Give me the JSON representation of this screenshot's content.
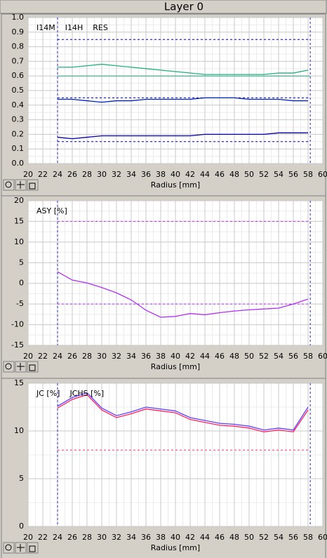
{
  "window_title": "Layer 0",
  "chart_data": [
    {
      "type": "line",
      "xlabel": "Radius [mm]",
      "grid": true,
      "xlim": [
        20,
        60
      ],
      "xticks": [
        20,
        22,
        24,
        26,
        28,
        30,
        32,
        34,
        36,
        38,
        40,
        42,
        44,
        46,
        48,
        50,
        52,
        54,
        56,
        58,
        60
      ],
      "ylim": [
        0,
        1
      ],
      "yticks": [
        {
          "value": 0,
          "label": "0.0"
        },
        0.1,
        0.2,
        0.3,
        0.4,
        0.5,
        0.6,
        0.7,
        0.8,
        0.9,
        {
          "value": 1,
          "label": "1.0"
        }
      ],
      "vlines": [
        24,
        58.3
      ],
      "hlines": [
        {
          "value": 0.85,
          "color": "#0000c8",
          "dashed": true
        },
        {
          "value": 0.6,
          "color": "#20b080",
          "dashed": false
        },
        {
          "value": 0.45,
          "color": "#0000c8",
          "dashed": true
        },
        {
          "value": 0.15,
          "color": "#0000c8",
          "dashed": true
        }
      ],
      "x": [
        24,
        26,
        28,
        30,
        32,
        34,
        36,
        38,
        40,
        42,
        44,
        46,
        48,
        50,
        52,
        54,
        56,
        58
      ],
      "series": [
        {
          "name": "I14M",
          "color": "#20b080",
          "values": [
            0.66,
            0.66,
            0.67,
            0.68,
            0.67,
            0.66,
            0.65,
            0.64,
            0.63,
            0.62,
            0.61,
            0.61,
            0.61,
            0.61,
            0.61,
            0.62,
            0.62,
            0.64
          ]
        },
        {
          "name": "I14H",
          "color": "#0020c0",
          "values": [
            0.44,
            0.44,
            0.43,
            0.42,
            0.43,
            0.43,
            0.44,
            0.44,
            0.44,
            0.44,
            0.45,
            0.45,
            0.45,
            0.44,
            0.44,
            0.44,
            0.43,
            0.43
          ]
        },
        {
          "name": "RES",
          "color": "#0000a8",
          "values": [
            0.18,
            0.17,
            0.18,
            0.19,
            0.19,
            0.19,
            0.19,
            0.19,
            0.19,
            0.19,
            0.2,
            0.2,
            0.2,
            0.2,
            0.2,
            0.21,
            0.21,
            0.21
          ]
        }
      ]
    },
    {
      "type": "line",
      "xlabel": "Radius [mm]",
      "grid": true,
      "xlim": [
        20,
        60
      ],
      "xticks": [
        20,
        22,
        24,
        26,
        28,
        30,
        32,
        34,
        36,
        38,
        40,
        42,
        44,
        46,
        48,
        50,
        52,
        54,
        56,
        58,
        60
      ],
      "ylim": [
        -15,
        20
      ],
      "yticks": [
        -15,
        -10,
        -5,
        0,
        5,
        10,
        15,
        20
      ],
      "vlines": [
        24,
        58.3
      ],
      "hlines": [
        {
          "value": 15,
          "color": "#b030f0",
          "dashed": true
        },
        {
          "value": -5,
          "color": "#b030f0",
          "dashed": true
        }
      ],
      "x": [
        24,
        26,
        28,
        30,
        32,
        34,
        36,
        38,
        40,
        42,
        44,
        46,
        48,
        50,
        52,
        54,
        56,
        58
      ],
      "series": [
        {
          "name": "ASY [%]",
          "color": "#b030f0",
          "values": [
            2.8,
            0.8,
            0.1,
            -1,
            -2.3,
            -4,
            -6.5,
            -8.2,
            -8,
            -7.3,
            -7.6,
            -7.1,
            -6.7,
            -6.4,
            -6.2,
            -6,
            -5,
            -3.8
          ]
        }
      ]
    },
    {
      "type": "line",
      "xlabel": "Radius [mm]",
      "grid": true,
      "xlim": [
        20,
        60
      ],
      "xticks": [
        20,
        22,
        24,
        26,
        28,
        30,
        32,
        34,
        36,
        38,
        40,
        42,
        44,
        46,
        48,
        50,
        52,
        54,
        56,
        58,
        60
      ],
      "ylim": [
        0,
        15
      ],
      "yticks": [
        0,
        5,
        10,
        15
      ],
      "vlines": [
        24,
        58.3
      ],
      "hlines": [
        {
          "value": 8,
          "color": "#ff3070",
          "dashed": true
        }
      ],
      "x": [
        24,
        26,
        28,
        30,
        32,
        34,
        36,
        38,
        40,
        42,
        44,
        46,
        48,
        50,
        52,
        54,
        56,
        58
      ],
      "series": [
        {
          "name": "JC [%]",
          "color": "#ff2060",
          "values": [
            12.4,
            13.3,
            13.8,
            12.2,
            11.4,
            11.8,
            12.3,
            12.1,
            11.9,
            11.2,
            10.9,
            10.6,
            10.5,
            10.3,
            9.9,
            10.1,
            9.9,
            12.2
          ]
        },
        {
          "name": "JCHS [%]",
          "color": "#6040ff",
          "values": [
            12.6,
            13.5,
            14.0,
            12.4,
            11.6,
            12.0,
            12.5,
            12.3,
            12.1,
            11.4,
            11.1,
            10.8,
            10.7,
            10.5,
            10.1,
            10.3,
            10.1,
            12.5
          ]
        }
      ]
    }
  ]
}
